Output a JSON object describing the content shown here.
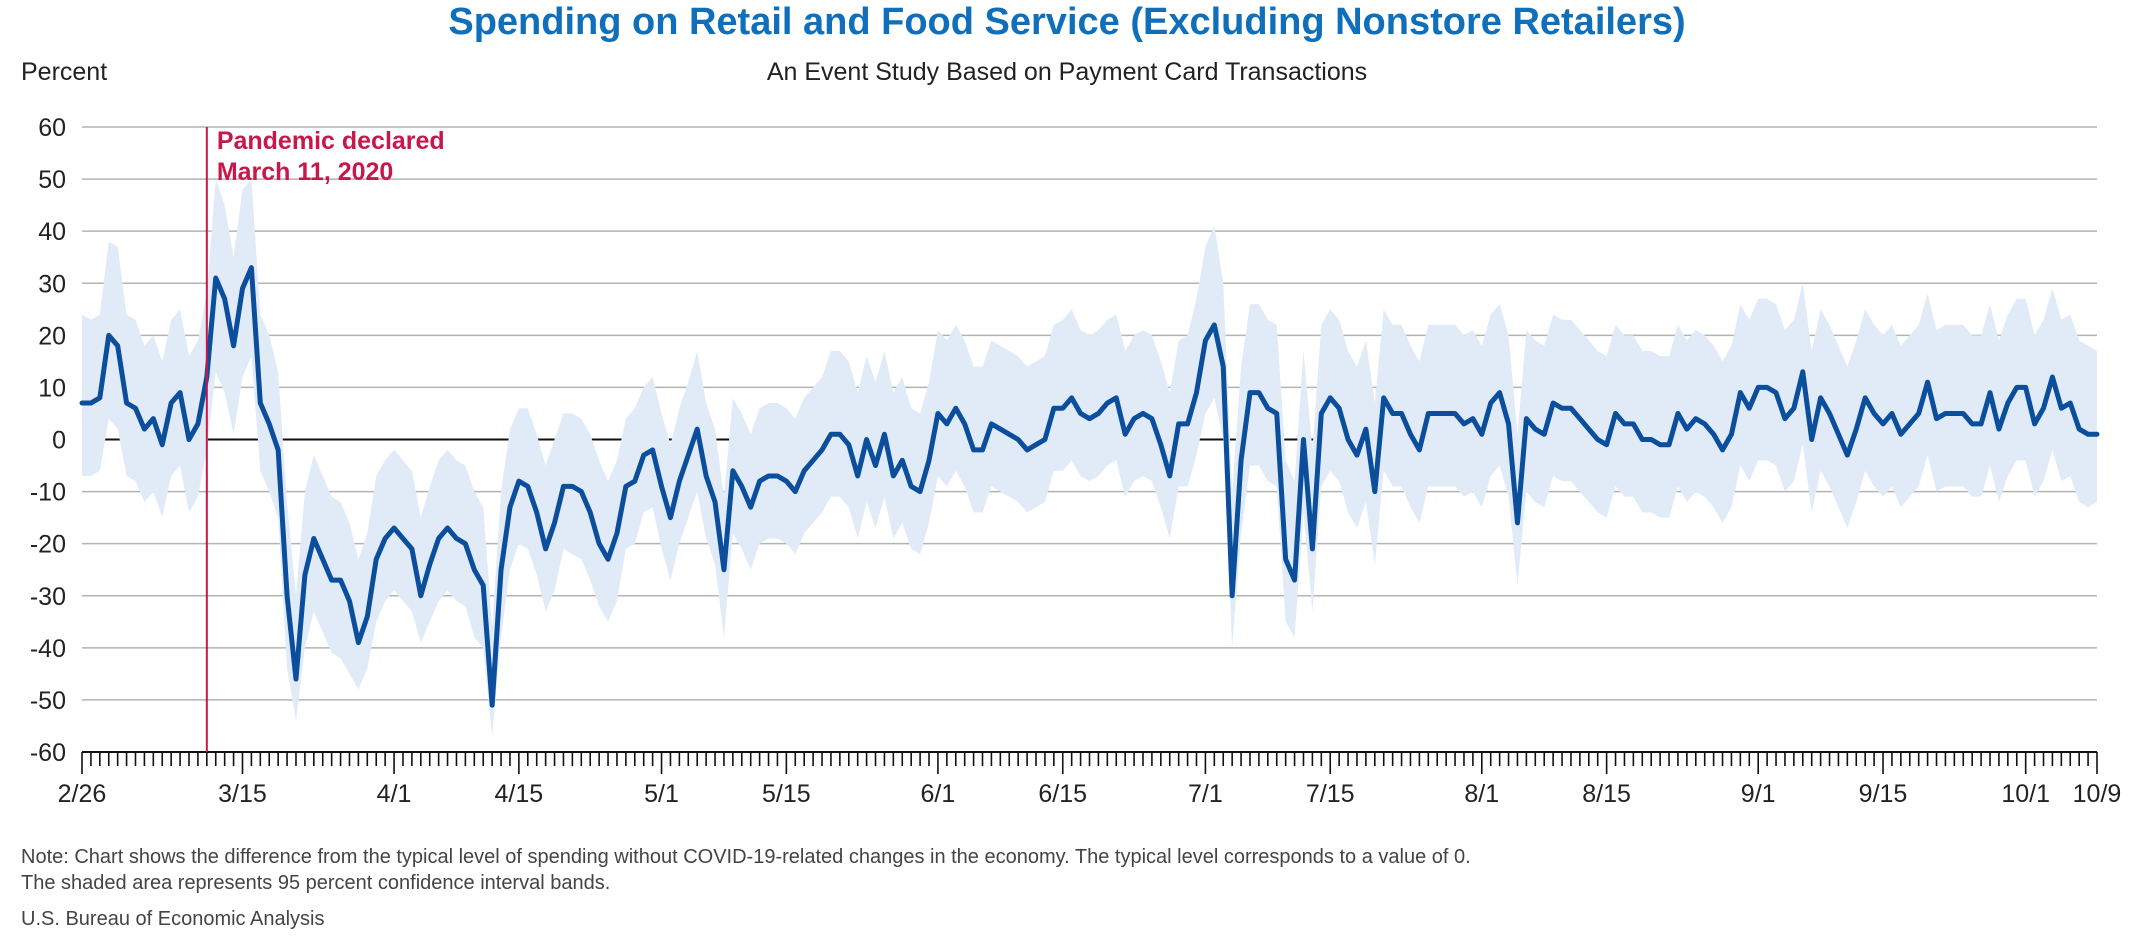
{
  "colors": {
    "title": "#0f6fbb",
    "line": "#0b4e9c",
    "band": "#e1ebf8",
    "grid": "#b3b3b3",
    "zero": "#111111",
    "event": "#c8174a"
  },
  "chart_data": {
    "type": "line",
    "title": "Spending on Retail and Food Service (Excluding Nonstore Retailers)",
    "subtitle": "An Event Study Based on Payment Card Transactions",
    "ylabel": "Percent",
    "xlabel": "",
    "ylim": [
      -60,
      60
    ],
    "yticks": [
      60,
      50,
      40,
      30,
      20,
      10,
      0,
      -10,
      -20,
      -30,
      -40,
      -50,
      -60
    ],
    "grid": true,
    "x_start": "2020-02-26",
    "x_end": "2020-10-09",
    "x_tick_labels": [
      {
        "date": "2020-02-26",
        "label": "2/26"
      },
      {
        "date": "2020-03-15",
        "label": "3/15"
      },
      {
        "date": "2020-04-01",
        "label": "4/1"
      },
      {
        "date": "2020-04-15",
        "label": "4/15"
      },
      {
        "date": "2020-05-01",
        "label": "5/1"
      },
      {
        "date": "2020-05-15",
        "label": "5/15"
      },
      {
        "date": "2020-06-01",
        "label": "6/1"
      },
      {
        "date": "2020-06-15",
        "label": "6/15"
      },
      {
        "date": "2020-07-01",
        "label": "7/1"
      },
      {
        "date": "2020-07-15",
        "label": "7/15"
      },
      {
        "date": "2020-08-01",
        "label": "8/1"
      },
      {
        "date": "2020-08-15",
        "label": "8/15"
      },
      {
        "date": "2020-09-01",
        "label": "9/1"
      },
      {
        "date": "2020-09-15",
        "label": "9/15"
      },
      {
        "date": "2020-10-01",
        "label": "10/1"
      },
      {
        "date": "2020-10-09",
        "label": "10/9"
      }
    ],
    "annotation": {
      "date": "2020-03-11",
      "line1": "Pandemic declared",
      "line2": "March 11, 2020"
    },
    "series": [
      {
        "values": [
          7,
          7,
          8,
          20,
          18,
          7,
          6,
          2,
          4,
          -1,
          7,
          9,
          0,
          3,
          12,
          31,
          27,
          18,
          29,
          33,
          7,
          3,
          -2,
          -30,
          -46,
          -26,
          -19,
          -23,
          -27,
          -27,
          -31,
          -39,
          -34,
          -23,
          -19,
          -17,
          -19,
          -21,
          -30,
          -24,
          -19,
          -17,
          -19,
          -20,
          -25,
          -28,
          -51,
          -25,
          -13,
          -8,
          -9,
          -14,
          -21,
          -16,
          -9,
          -9,
          -10,
          -14,
          -20,
          -23,
          -18,
          -9,
          -8,
          -3,
          -2,
          -9,
          -15,
          -8,
          -3,
          2,
          -7,
          -12,
          -25,
          -6,
          -9,
          -13,
          -8,
          -7,
          -7,
          -8,
          -10,
          -6,
          -4,
          -2,
          1,
          1,
          -1,
          -7,
          0,
          -5,
          1,
          -7,
          -4,
          -9,
          -10,
          -4,
          5,
          3,
          6,
          3,
          -2,
          -2,
          3,
          2,
          1,
          0,
          -2,
          -1,
          0,
          6,
          6,
          8,
          5,
          4,
          5,
          7,
          8,
          1,
          4,
          5,
          4,
          -1,
          -7,
          3,
          3,
          9,
          19,
          22,
          14,
          -30,
          -4,
          9,
          9,
          6,
          5,
          -23,
          -27,
          0,
          -21,
          5,
          8,
          6,
          0,
          -3,
          2,
          -10,
          8,
          5,
          5,
          1,
          -2,
          5,
          5,
          5,
          5,
          3,
          4,
          1,
          7,
          9,
          3,
          -16,
          4,
          2,
          1,
          7,
          6,
          6,
          4,
          2,
          0,
          -1,
          5,
          3,
          3,
          0,
          0,
          -1,
          -1,
          5,
          2,
          4,
          3,
          1,
          -2,
          1,
          9,
          6,
          10,
          10,
          9,
          4,
          6,
          13,
          0,
          8,
          5,
          1,
          -3,
          2,
          8,
          5,
          3,
          5,
          1,
          3,
          5,
          11,
          4,
          5,
          5,
          5,
          3,
          3,
          9,
          2,
          7,
          10,
          10,
          3,
          6,
          12,
          6,
          7,
          2,
          1,
          1
        ],
        "upper": [
          24,
          23,
          24,
          38,
          37,
          24,
          23,
          18,
          20,
          15,
          23,
          25,
          16,
          19,
          28,
          50,
          45,
          35,
          48,
          50,
          24,
          20,
          13,
          -12,
          -30,
          -10,
          -3,
          -7,
          -11,
          -12,
          -16,
          -23,
          -18,
          -7,
          -4,
          -2,
          -4,
          -6,
          -15,
          -9,
          -4,
          -2,
          -4,
          -5,
          -10,
          -13,
          -36,
          -10,
          2,
          6,
          6,
          1,
          -5,
          0,
          5,
          5,
          4,
          1,
          -4,
          -8,
          -4,
          4,
          6,
          10,
          12,
          5,
          -1,
          6,
          11,
          17,
          7,
          2,
          -11,
          8,
          5,
          1,
          6,
          7,
          7,
          6,
          4,
          8,
          10,
          12,
          17,
          17,
          15,
          9,
          16,
          11,
          17,
          9,
          12,
          6,
          5,
          11,
          21,
          19,
          22,
          19,
          14,
          14,
          19,
          18,
          17,
          16,
          14,
          15,
          16,
          22,
          23,
          25,
          21,
          20,
          21,
          23,
          24,
          17,
          20,
          21,
          20,
          15,
          9,
          19,
          20,
          27,
          37,
          41,
          30,
          -10,
          14,
          26,
          26,
          23,
          22,
          -4,
          -8,
          17,
          -2,
          22,
          25,
          23,
          17,
          14,
          19,
          7,
          25,
          22,
          22,
          18,
          15,
          22,
          22,
          22,
          22,
          20,
          21,
          18,
          24,
          26,
          20,
          1,
          21,
          19,
          18,
          24,
          23,
          23,
          21,
          19,
          17,
          16,
          22,
          20,
          20,
          17,
          17,
          16,
          16,
          22,
          19,
          21,
          20,
          18,
          15,
          18,
          26,
          23,
          27,
          27,
          26,
          21,
          23,
          30,
          17,
          25,
          22,
          18,
          14,
          19,
          25,
          22,
          20,
          22,
          18,
          20,
          22,
          28,
          21,
          22,
          22,
          22,
          20,
          20,
          26,
          19,
          24,
          27,
          27,
          20,
          23,
          29,
          23,
          24,
          19,
          18,
          17
        ],
        "lower": [
          -7,
          -7,
          -6,
          4,
          2,
          -7,
          -8,
          -12,
          -10,
          -15,
          -7,
          -5,
          -14,
          -11,
          -2,
          13,
          9,
          1,
          12,
          16,
          -6,
          -10,
          -15,
          -44,
          -54,
          -40,
          -33,
          -37,
          -41,
          -42,
          -45,
          -48,
          -44,
          -35,
          -31,
          -29,
          -31,
          -33,
          -39,
          -35,
          -31,
          -29,
          -31,
          -32,
          -38,
          -40,
          -57,
          -38,
          -25,
          -20,
          -21,
          -26,
          -33,
          -29,
          -21,
          -22,
          -23,
          -27,
          -32,
          -35,
          -31,
          -21,
          -20,
          -14,
          -13,
          -21,
          -27,
          -20,
          -15,
          -10,
          -19,
          -24,
          -38,
          -18,
          -21,
          -25,
          -20,
          -19,
          -19,
          -20,
          -22,
          -18,
          -16,
          -14,
          -11,
          -11,
          -13,
          -19,
          -12,
          -17,
          -11,
          -19,
          -16,
          -21,
          -22,
          -16,
          -7,
          -9,
          -6,
          -9,
          -14,
          -14,
          -9,
          -10,
          -11,
          -12,
          -14,
          -13,
          -12,
          -6,
          -6,
          -4,
          -7,
          -8,
          -7,
          -5,
          -4,
          -11,
          -8,
          -7,
          -8,
          -13,
          -19,
          -9,
          -9,
          -3,
          5,
          8,
          0,
          -40,
          -18,
          -5,
          -5,
          -8,
          -9,
          -35,
          -38,
          -14,
          -33,
          -9,
          -6,
          -8,
          -14,
          -17,
          -12,
          -24,
          -6,
          -9,
          -9,
          -13,
          -16,
          -9,
          -9,
          -9,
          -9,
          -11,
          -10,
          -13,
          -7,
          -5,
          -11,
          -28,
          -10,
          -12,
          -13,
          -7,
          -8,
          -8,
          -10,
          -12,
          -14,
          -15,
          -9,
          -11,
          -11,
          -14,
          -14,
          -15,
          -15,
          -9,
          -12,
          -10,
          -11,
          -13,
          -16,
          -13,
          -5,
          -8,
          -4,
          -4,
          -5,
          -10,
          -8,
          -1,
          -14,
          -6,
          -9,
          -13,
          -17,
          -12,
          -6,
          -9,
          -11,
          -9,
          -13,
          -11,
          -9,
          -3,
          -10,
          -9,
          -9,
          -9,
          -11,
          -11,
          -5,
          -12,
          -7,
          -4,
          -4,
          -11,
          -8,
          -2,
          -8,
          -7,
          -12,
          -13,
          -12
        ]
      }
    ]
  },
  "footer": {
    "note1": "Note: Chart shows the difference from the typical level of spending without COVID-19-related changes in the economy. The typical level corresponds to a value of 0.",
    "note2": "The shaded area represents 95 percent confidence interval bands.",
    "source": "U.S. Bureau of Economic Analysis"
  }
}
